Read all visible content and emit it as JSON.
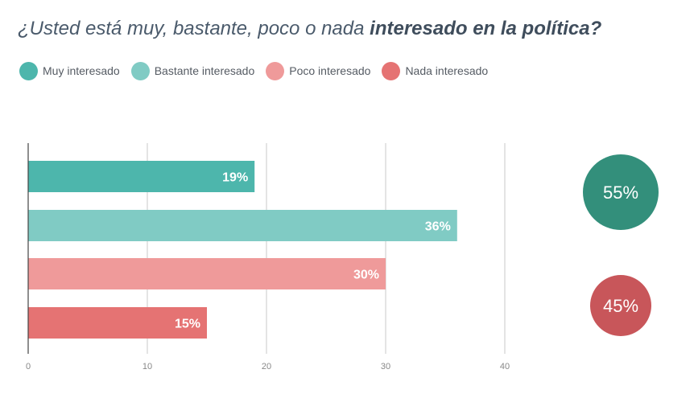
{
  "title": {
    "prefix": "¿Usted está muy, bastante, poco o nada ",
    "emphasis": "interesado en la política?"
  },
  "colors": {
    "muy": "#4db6ac",
    "bastante": "#80cbc4",
    "poco": "#ef9a9a",
    "nada": "#e57373",
    "interesado_total": "#338f7b",
    "no_interesado_total": "#c8565a",
    "grid": "#c9c9c9",
    "axis": "#444444",
    "tick": "#888888"
  },
  "chart_data": {
    "type": "bar",
    "orientation": "horizontal",
    "categories": [
      "Muy interesado",
      "Bastante interesado",
      "Poco interesado",
      "Nada interesado"
    ],
    "values": [
      19,
      36,
      30,
      15
    ],
    "value_labels": [
      "19%",
      "36%",
      "30%",
      "15%"
    ],
    "xlim": [
      0,
      40
    ],
    "xticks": [
      "0",
      "10",
      "20",
      "30",
      "40"
    ],
    "grid": true,
    "legend": "top-left",
    "totals": [
      {
        "label": "55%",
        "value": 55
      },
      {
        "label": "45%",
        "value": 45
      }
    ]
  }
}
